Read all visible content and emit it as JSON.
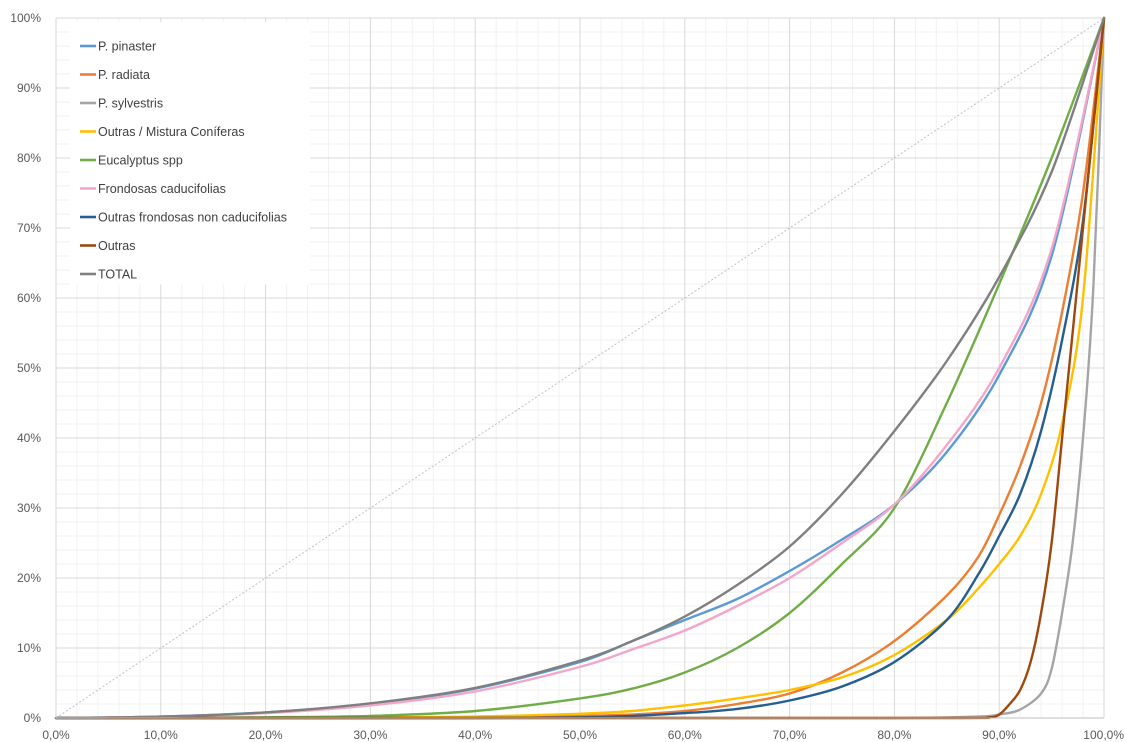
{
  "chart_data": {
    "type": "line",
    "xlim": [
      0,
      100
    ],
    "ylim": [
      0,
      100
    ],
    "x_ticks": [
      "0,0%",
      "10,0%",
      "20,0%",
      "30,0%",
      "40,0%",
      "50,0%",
      "60,0%",
      "70,0%",
      "80,0%",
      "90,0%",
      "100,0%"
    ],
    "y_ticks": [
      "0%",
      "10%",
      "20%",
      "30%",
      "40%",
      "50%",
      "60%",
      "70%",
      "80%",
      "90%",
      "100%"
    ],
    "grid": true,
    "legend_position": "top-left",
    "reference_line": {
      "x": [
        0,
        100
      ],
      "y": [
        0,
        100
      ],
      "color": "#c0c0c0"
    },
    "series": [
      {
        "name": "P. pinaster",
        "color": "#5b9bd5",
        "x": [
          0,
          10,
          20,
          30,
          40,
          50,
          55,
          60,
          65,
          70,
          75,
          80,
          85,
          90,
          95,
          100
        ],
        "y": [
          0,
          0.2,
          0.8,
          2,
          4.2,
          8,
          11,
          14,
          17,
          21,
          25.5,
          30.5,
          38,
          49,
          66,
          100
        ]
      },
      {
        "name": "P. radiata",
        "color": "#ed7d31",
        "x": [
          0,
          10,
          20,
          30,
          40,
          50,
          55,
          60,
          65,
          70,
          75,
          80,
          85,
          88,
          90,
          92,
          94,
          96,
          98,
          100
        ],
        "y": [
          0,
          0,
          0,
          0,
          0.1,
          0.3,
          0.5,
          1,
          2,
          3.5,
          6.5,
          11,
          17.5,
          23,
          29,
          36,
          45,
          58,
          75,
          100
        ]
      },
      {
        "name": "P. sylvestris",
        "color": "#a5a5a5",
        "x": [
          0,
          40,
          60,
          80,
          88,
          90,
          92,
          94,
          95,
          96,
          97,
          98,
          99,
          100
        ],
        "y": [
          0,
          0,
          0,
          0,
          0.2,
          0.5,
          1.2,
          3.5,
          7,
          15,
          25,
          40,
          62,
          100
        ]
      },
      {
        "name": "Outras / Mistura Coníferas",
        "color": "#ffc000",
        "x": [
          0,
          10,
          20,
          30,
          40,
          50,
          55,
          60,
          65,
          70,
          75,
          80,
          85,
          88,
          90,
          92,
          94,
          96,
          98,
          100
        ],
        "y": [
          0,
          0,
          0,
          0.1,
          0.2,
          0.6,
          1,
          1.8,
          2.8,
          4,
          5.8,
          9,
          14,
          18.5,
          22,
          26,
          32,
          42,
          60,
          100
        ]
      },
      {
        "name": "Eucalyptus spp",
        "color": "#70ad47",
        "x": [
          0,
          10,
          20,
          30,
          40,
          50,
          55,
          60,
          65,
          70,
          75,
          80,
          85,
          90,
          95,
          100
        ],
        "y": [
          0,
          0,
          0.1,
          0.3,
          1,
          2.8,
          4.2,
          6.5,
          10,
          15,
          22,
          30,
          45,
          62,
          80,
          100
        ]
      },
      {
        "name": "Frondosas caducifolias",
        "color": "#f4a6c9",
        "x": [
          0,
          10,
          20,
          30,
          40,
          50,
          55,
          60,
          65,
          70,
          75,
          80,
          85,
          90,
          95,
          100
        ],
        "y": [
          0,
          0.2,
          0.7,
          1.8,
          3.8,
          7.3,
          9.8,
          12.5,
          16,
          20,
          25,
          30.5,
          39,
          50,
          67,
          100
        ]
      },
      {
        "name": "Outras frondosas non caducifolias",
        "color": "#255e91",
        "x": [
          0,
          10,
          20,
          30,
          40,
          50,
          55,
          60,
          65,
          70,
          75,
          80,
          85,
          88,
          90,
          92,
          94,
          96,
          98,
          100
        ],
        "y": [
          0,
          0,
          0,
          0,
          0,
          0.1,
          0.3,
          0.7,
          1.3,
          2.5,
          4.5,
          8,
          14,
          20.5,
          26,
          32,
          41,
          54,
          71,
          100
        ]
      },
      {
        "name": "Outras",
        "color": "#9e480e",
        "x": [
          0,
          50,
          85,
          89,
          90,
          91,
          92,
          93,
          94,
          95,
          96,
          97,
          98,
          99,
          100
        ],
        "y": [
          0,
          0,
          0,
          0.1,
          0.5,
          2,
          4,
          8,
          15,
          25,
          40,
          55,
          70,
          85,
          100
        ]
      },
      {
        "name": "TOTAL",
        "color": "#7f7f7f",
        "x": [
          0,
          10,
          20,
          30,
          40,
          50,
          55,
          60,
          65,
          70,
          75,
          80,
          85,
          90,
          95,
          100
        ],
        "y": [
          0,
          0.2,
          0.8,
          2.1,
          4.3,
          8.2,
          11,
          14.5,
          19,
          24.5,
          32,
          41,
          51,
          63,
          78,
          100
        ]
      }
    ]
  }
}
